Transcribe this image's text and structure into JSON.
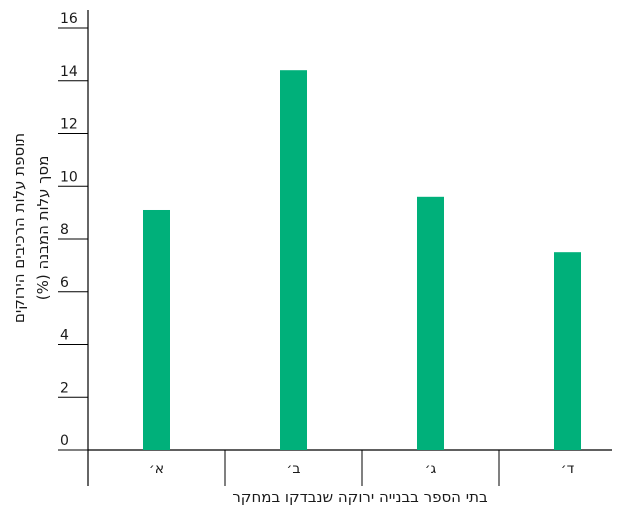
{
  "chart_data": {
    "type": "bar",
    "categories": [
      "א׳",
      "ב׳",
      "ג׳",
      "ד׳"
    ],
    "values": [
      9.1,
      14.4,
      9.6,
      7.5
    ],
    "yticks": [
      0,
      2,
      4,
      6,
      8,
      10,
      12,
      14,
      16
    ],
    "ylim": [
      0,
      16
    ],
    "xlabel": "בתי הספר בבנייה ירוקה שנבדקו במחקר",
    "ylabel_line1": "תוספת עלות הרכיבים הירוקים",
    "ylabel_line2": "מסך עלות המבנה (%)",
    "bar_color": "#00b07a",
    "axis_color": "#000000",
    "grid": false,
    "legend": "none"
  }
}
